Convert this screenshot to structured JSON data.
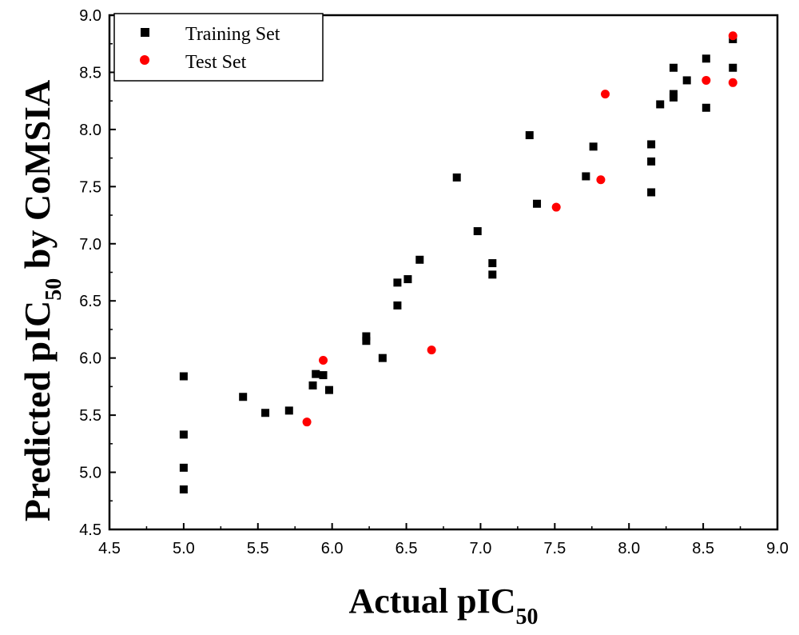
{
  "chart_data": {
    "type": "scatter",
    "xlabel": {
      "main": "Actual pIC",
      "sub": "50"
    },
    "ylabel": {
      "main": "Predicted pIC",
      "sub": "50",
      "suffix": " by CoMSIA"
    },
    "xlim": [
      4.5,
      9.0
    ],
    "ylim": [
      4.5,
      9.0
    ],
    "xticks": [
      "4.5",
      "5.0",
      "5.5",
      "6.0",
      "6.5",
      "7.0",
      "7.5",
      "8.0",
      "8.5",
      "9.0"
    ],
    "yticks": [
      "4.5",
      "5.0",
      "5.5",
      "6.0",
      "6.5",
      "7.0",
      "7.5",
      "8.0",
      "8.5",
      "9.0"
    ],
    "legend_position": "top-left",
    "series": [
      {
        "name": "Training Set",
        "marker": "square",
        "color": "#000000",
        "points": [
          [
            5.0,
            5.84
          ],
          [
            5.0,
            5.33
          ],
          [
            5.0,
            5.04
          ],
          [
            5.0,
            4.85
          ],
          [
            5.4,
            5.66
          ],
          [
            5.55,
            5.52
          ],
          [
            5.71,
            5.54
          ],
          [
            5.87,
            5.76
          ],
          [
            5.89,
            5.86
          ],
          [
            5.94,
            5.85
          ],
          [
            5.98,
            5.72
          ],
          [
            6.23,
            6.19
          ],
          [
            6.23,
            6.15
          ],
          [
            6.34,
            6.0
          ],
          [
            6.44,
            6.66
          ],
          [
            6.44,
            6.46
          ],
          [
            6.51,
            6.69
          ],
          [
            6.59,
            6.86
          ],
          [
            6.84,
            7.58
          ],
          [
            6.98,
            7.11
          ],
          [
            7.08,
            6.83
          ],
          [
            7.08,
            6.73
          ],
          [
            7.33,
            7.95
          ],
          [
            7.38,
            7.35
          ],
          [
            7.71,
            7.59
          ],
          [
            7.76,
            7.85
          ],
          [
            8.15,
            7.87
          ],
          [
            8.15,
            7.72
          ],
          [
            8.15,
            7.45
          ],
          [
            8.21,
            8.22
          ],
          [
            8.3,
            8.54
          ],
          [
            8.3,
            8.31
          ],
          [
            8.3,
            8.28
          ],
          [
            8.39,
            8.43
          ],
          [
            8.52,
            8.62
          ],
          [
            8.52,
            8.19
          ],
          [
            8.7,
            8.79
          ],
          [
            8.7,
            8.54
          ]
        ]
      },
      {
        "name": "Test Set",
        "marker": "circle",
        "color": "#ff0000",
        "points": [
          [
            5.83,
            5.44
          ],
          [
            5.94,
            5.98
          ],
          [
            6.67,
            6.07
          ],
          [
            7.51,
            7.32
          ],
          [
            7.81,
            7.56
          ],
          [
            7.84,
            8.31
          ],
          [
            8.52,
            8.43
          ],
          [
            8.7,
            8.82
          ],
          [
            8.7,
            8.41
          ]
        ]
      }
    ]
  }
}
